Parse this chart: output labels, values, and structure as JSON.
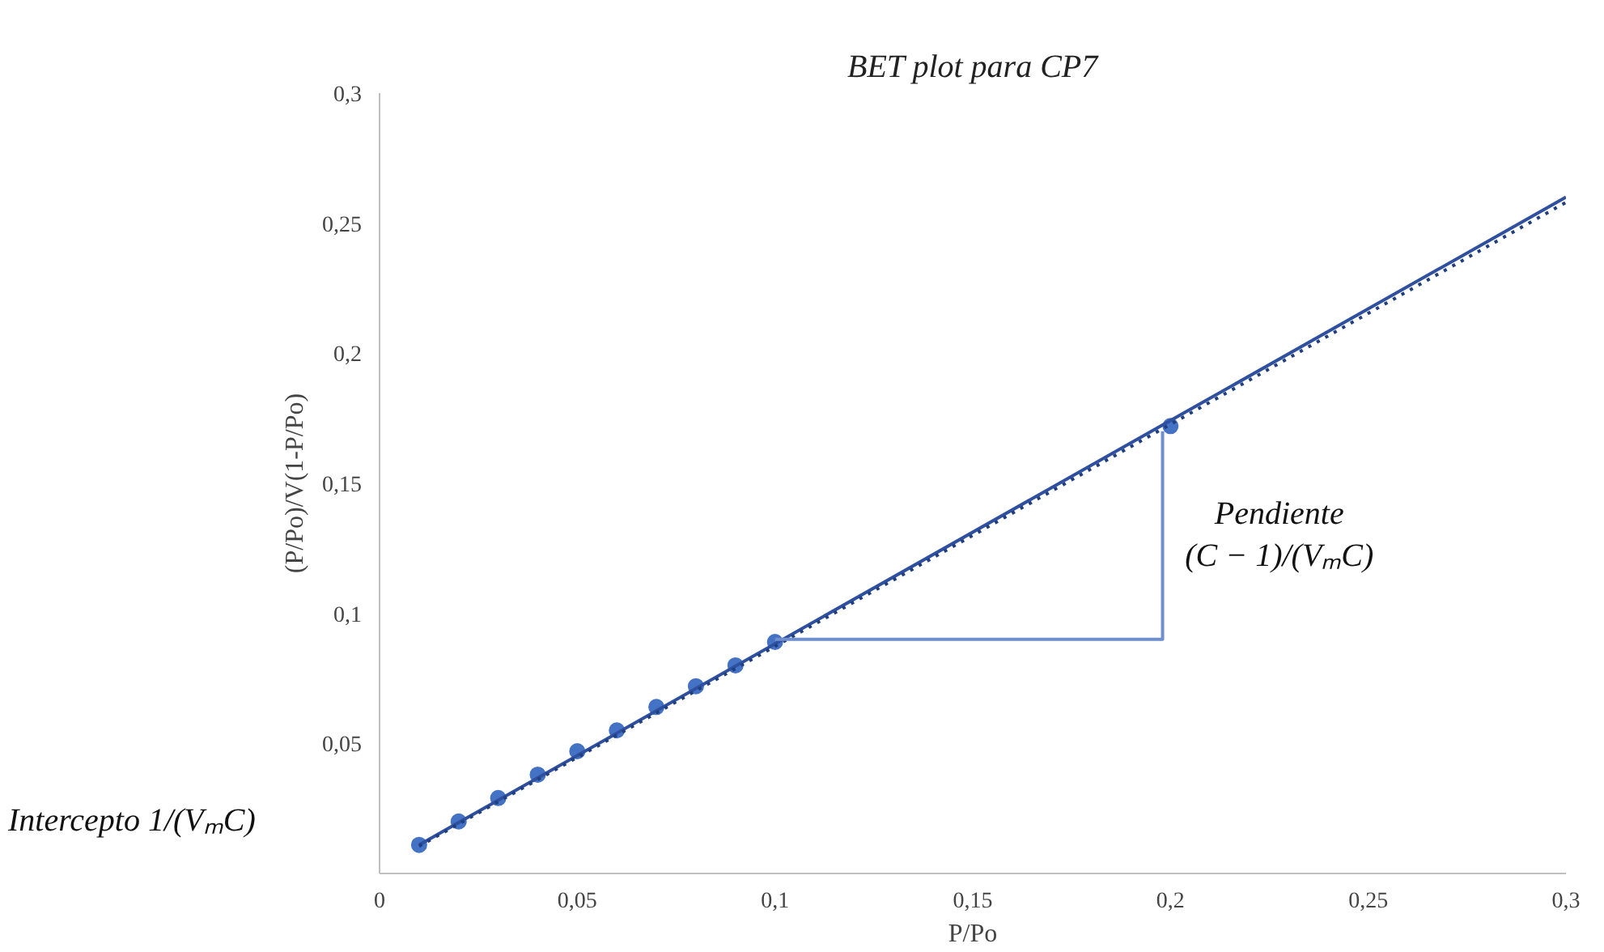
{
  "chart_data": {
    "type": "scatter",
    "title": "BET plot para CP7",
    "xlabel": "P/Po",
    "ylabel": "(P/Po)/V(1-P/Po)",
    "x": [
      0.01,
      0.02,
      0.03,
      0.04,
      0.05,
      0.06,
      0.07,
      0.08,
      0.09,
      0.1,
      0.2
    ],
    "series": [
      {
        "color": "#4472c4",
        "marker": "circle",
        "values": [
          0.011,
          0.02,
          0.029,
          0.038,
          0.047,
          0.055,
          0.064,
          0.072,
          0.08,
          0.089,
          0.172
        ]
      },
      {
        "type": "line",
        "color": "#2f4f9f",
        "line_style": "solid",
        "marker": "none",
        "x": [
          0.01,
          0.3
        ],
        "values": [
          0.011,
          0.26
        ]
      },
      {
        "type": "line",
        "color": "#1f3f7f",
        "line_style": "dotted",
        "marker": "none",
        "x": [
          0.01,
          0.3
        ],
        "values": [
          0.0105,
          0.258
        ]
      },
      {
        "type": "line",
        "color": "#6f8fcf",
        "line_style": "solid",
        "marker": "none",
        "x": [
          0.1,
          0.198,
          0.198
        ],
        "values": [
          0.09,
          0.09,
          0.17
        ]
      }
    ],
    "annotations": [
      "Intercepto 1/(VₘC)",
      "Pendiente\n(C − 1)/(VₘC)"
    ],
    "xlim": [
      0,
      0.3
    ],
    "ylim": [
      0,
      0.3
    ],
    "xticks": [
      0,
      {
        "value": 0.05,
        "label": "0,05"
      },
      {
        "value": 0.1,
        "label": "0,1"
      },
      {
        "value": 0.15,
        "label": "0,15"
      },
      {
        "value": 0.2,
        "label": "0,2"
      },
      {
        "value": 0.25,
        "label": "0,25"
      },
      {
        "value": 0.3,
        "label": "0,3"
      }
    ],
    "yticks": [
      {
        "value": 0.05,
        "label": "0,05"
      },
      {
        "value": 0.1,
        "label": "0,1"
      },
      {
        "value": 0.15,
        "label": "0,15"
      },
      {
        "value": 0.2,
        "label": "0,2"
      },
      {
        "value": 0.25,
        "label": "0,25"
      },
      {
        "value": 0.3,
        "label": "0,3"
      }
    ],
    "grid": false
  }
}
